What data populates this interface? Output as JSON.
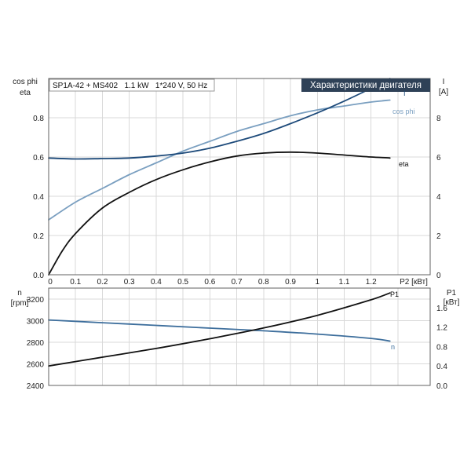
{
  "colors": {
    "cosphi": "#7a9fc0",
    "current": "#1d4a7a",
    "eta": "#111111",
    "speed": "#3d6e9c",
    "p1": "#111111",
    "badge_bg": "#2e4157",
    "badge_text": "#ffffff"
  },
  "chart_data": [
    {
      "type": "line",
      "caption": "SP1A-42 + MS402   1.1 kW   1*240 V, 50 Hz",
      "badge": "Характеристики двигателя",
      "left_axis_label_1": "cos phi",
      "left_axis_label_2": "eta",
      "right_axis_label_1": "I",
      "right_axis_label_2": "[A]",
      "xlabel": "P2 [кВт]",
      "xlim": [
        0,
        1.42
      ],
      "xticks": [
        "0",
        "0.1",
        "0.2",
        "0.3",
        "0.4",
        "0.5",
        "0.6",
        "0.7",
        "0.8",
        "0.9",
        "1",
        "1.1",
        "1.2"
      ],
      "ylim_left": [
        0,
        1.0
      ],
      "yticks_left": [
        "0.0",
        "0.2",
        "0.4",
        "0.6",
        "0.8"
      ],
      "ylim_right": [
        0,
        10
      ],
      "yticks_right": [
        "0",
        "2",
        "4",
        "6",
        "8"
      ],
      "grid": true,
      "series": [
        {
          "name": "cos phi",
          "axis": "left",
          "x": [
            0,
            0.1,
            0.2,
            0.3,
            0.4,
            0.5,
            0.6,
            0.7,
            0.8,
            0.9,
            1.0,
            1.1,
            1.2,
            1.27
          ],
          "y": [
            0.28,
            0.37,
            0.44,
            0.51,
            0.57,
            0.63,
            0.68,
            0.73,
            0.77,
            0.81,
            0.84,
            0.86,
            0.88,
            0.89
          ]
        },
        {
          "name": "I",
          "axis": "right",
          "x": [
            0,
            0.1,
            0.2,
            0.3,
            0.4,
            0.5,
            0.6,
            0.7,
            0.8,
            0.9,
            1.0,
            1.1,
            1.2,
            1.27
          ],
          "y": [
            5.95,
            5.9,
            5.92,
            5.95,
            6.05,
            6.2,
            6.45,
            6.8,
            7.2,
            7.7,
            8.25,
            8.85,
            9.5,
            10.0
          ]
        },
        {
          "name": "eta",
          "axis": "left",
          "x": [
            0,
            0.05,
            0.1,
            0.2,
            0.3,
            0.4,
            0.5,
            0.6,
            0.7,
            0.8,
            0.9,
            1.0,
            1.1,
            1.2,
            1.27
          ],
          "y": [
            0,
            0.12,
            0.21,
            0.34,
            0.42,
            0.485,
            0.535,
            0.575,
            0.605,
            0.62,
            0.625,
            0.62,
            0.61,
            0.6,
            0.595
          ]
        }
      ]
    },
    {
      "type": "line",
      "left_axis_label_1": "n",
      "left_axis_label_2": "[rpm]",
      "right_axis_label_1": "P1",
      "right_axis_label_2": "[кВт]",
      "xlim": [
        0,
        1.42
      ],
      "ylim_left": [
        2400,
        3300
      ],
      "yticks_left": [
        "2400",
        "2600",
        "2800",
        "3000",
        "3200"
      ],
      "ylim_right": [
        0,
        2.0
      ],
      "yticks_right": [
        "0.0",
        "0.4",
        "0.8",
        "1.2",
        "1.6"
      ],
      "grid": true,
      "series": [
        {
          "name": "n",
          "axis": "left",
          "x": [
            0,
            0.2,
            0.4,
            0.6,
            0.8,
            1.0,
            1.2,
            1.27
          ],
          "y": [
            3005,
            2980,
            2955,
            2930,
            2905,
            2875,
            2835,
            2810
          ]
        },
        {
          "name": "P1",
          "axis": "right",
          "x": [
            0,
            0.2,
            0.4,
            0.6,
            0.8,
            1.0,
            1.2,
            1.27
          ],
          "y": [
            0.4,
            0.58,
            0.76,
            0.96,
            1.18,
            1.44,
            1.76,
            1.9
          ]
        }
      ]
    }
  ]
}
